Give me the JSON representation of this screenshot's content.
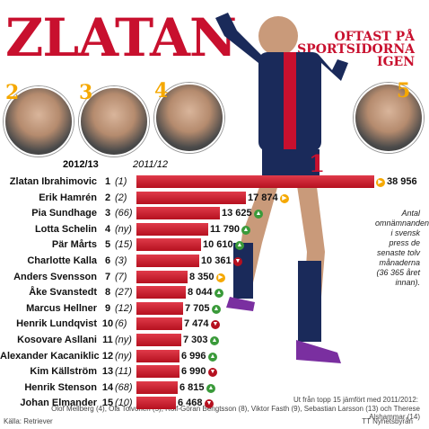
{
  "title": "ZLATAN",
  "subtitle": "OFTAST PÅ SPORTSIDORNA IGEN",
  "photo_ranks": [
    "2",
    "3",
    "4",
    "5"
  ],
  "big_rank": "1",
  "headers": {
    "y2013": "2012/13",
    "y2012": "2011/12"
  },
  "note": "Antal omnämnanden i svensk press de senaste tolv månaderna (36 365 året innan).",
  "footer": {
    "text": "Ut från topp 15 jämfört med 2011/2012:",
    "list": "Olof Mellberg (4), Ola Toivonen (5), Rolf-Göran Bengtsson (8), Viktor Fasth (9), Sebastian Larsson (13) och Therese Alshammar (14)",
    "source": "Källa: Retriever",
    "agency": "TT Nyhetsbyrån"
  },
  "colors": {
    "accent": "#c8102e",
    "up": "#3a9a3a",
    "down": "#b5101f",
    "same": "#f5a800"
  },
  "chart_data": {
    "type": "bar",
    "categories": [
      "Zlatan Ibrahimovic",
      "Erik Hamrén",
      "Pia Sundhage",
      "Lotta Schelin",
      "Pär Mårts",
      "Charlotte Kalla",
      "Anders Svensson",
      "Åke Svanstedt",
      "Marcus Hellner",
      "Henrik Lundqvist",
      "Kosovare Asllani",
      "Alexander Kacaniklic",
      "Kim Källström",
      "Henrik Stenson",
      "Johan Elmander"
    ],
    "rank_2013": [
      "1",
      "2",
      "3",
      "4",
      "5",
      "6",
      "7",
      "8",
      "9",
      "10",
      "11",
      "12",
      "13",
      "14",
      "15"
    ],
    "rank_2012": [
      "(1)",
      "(2)",
      "(66)",
      "(ny)",
      "(15)",
      "(3)",
      "(7)",
      "(27)",
      "(12)",
      "(6)",
      "(ny)",
      "(ny)",
      "(11)",
      "(68)",
      "(10)"
    ],
    "values": [
      38956,
      17874,
      13625,
      11790,
      10610,
      10361,
      8350,
      8044,
      7705,
      7474,
      7303,
      6996,
      6990,
      6815,
      6468
    ],
    "labels": [
      "38 956",
      "17 874",
      "13 625",
      "11 790",
      "10 610",
      "10 361",
      "8 350",
      "8 044",
      "7 705",
      "7 474",
      "7 303",
      "6 996",
      "6 990",
      "6 815",
      "6 468"
    ],
    "trend": [
      "same",
      "same",
      "up",
      "up",
      "up",
      "down",
      "same",
      "up",
      "up",
      "down",
      "up",
      "up",
      "down",
      "up",
      "down"
    ],
    "xlim": [
      0,
      38956
    ]
  }
}
